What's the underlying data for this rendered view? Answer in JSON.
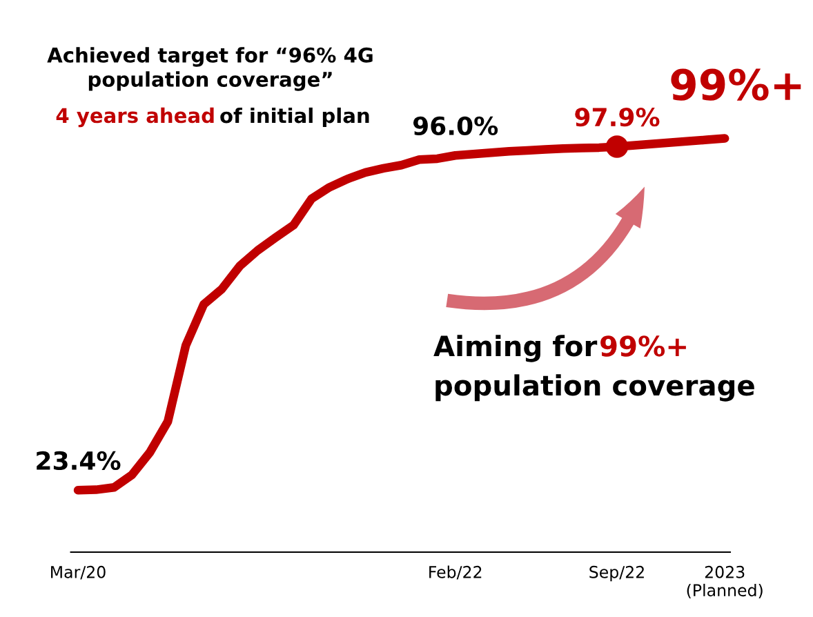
{
  "chart_data": {
    "type": "line",
    "categories": [
      "Mar/20",
      null,
      null,
      null,
      null,
      null,
      null,
      null,
      null,
      null,
      null,
      null,
      null,
      null,
      null,
      null,
      null,
      null,
      null,
      null,
      null,
      "Feb/22",
      null,
      null,
      null,
      null,
      null,
      null,
      null,
      null,
      "Sep/22",
      null,
      null,
      null,
      null,
      null,
      "2023\n(Planned)"
    ],
    "series": [
      {
        "color": "#c00000",
        "values": [
          23.4,
          23.5,
          24.0,
          26.7,
          31.6,
          38.3,
          54.8,
          63.7,
          67.0,
          72.0,
          75.4,
          78.2,
          80.9,
          86.6,
          89.1,
          90.9,
          92.3,
          93.2,
          93.9,
          95.1,
          95.3,
          96.0,
          96.3,
          96.6,
          96.9,
          97.1,
          97.3,
          97.5,
          97.6,
          97.7,
          97.9,
          98.2,
          98.5,
          98.8,
          99.1,
          99.4,
          99.7
        ],
        "value_labels": [
          "23.4%",
          null,
          null,
          null,
          null,
          null,
          null,
          null,
          null,
          null,
          null,
          null,
          null,
          null,
          null,
          null,
          null,
          null,
          null,
          null,
          null,
          "96.0%",
          null,
          null,
          null,
          null,
          null,
          null,
          null,
          null,
          null,
          null,
          null,
          null,
          null,
          null,
          null
        ]
      },
      {
        "type": "scatter",
        "color": "#c00000",
        "marker": "circle",
        "values": [
          null,
          null,
          null,
          null,
          null,
          null,
          null,
          null,
          null,
          null,
          null,
          null,
          null,
          null,
          null,
          null,
          null,
          null,
          null,
          null,
          null,
          null,
          null,
          null,
          null,
          null,
          null,
          null,
          null,
          null,
          97.9,
          null,
          null,
          null,
          null,
          null,
          null
        ],
        "value_labels": [
          null,
          null,
          null,
          null,
          null,
          null,
          null,
          null,
          null,
          null,
          null,
          null,
          null,
          null,
          null,
          null,
          null,
          null,
          null,
          null,
          null,
          null,
          null,
          null,
          null,
          null,
          null,
          null,
          null,
          null,
          "97.9%",
          null,
          null,
          null,
          null,
          null,
          null
        ]
      }
    ],
    "annotations": [
      "Achieved target for “96% 4G\npopulation coverage”",
      "4 years ahead",
      "of initial plan",
      "99%+",
      "Aiming for",
      "99%+",
      "population coverage"
    ]
  }
}
